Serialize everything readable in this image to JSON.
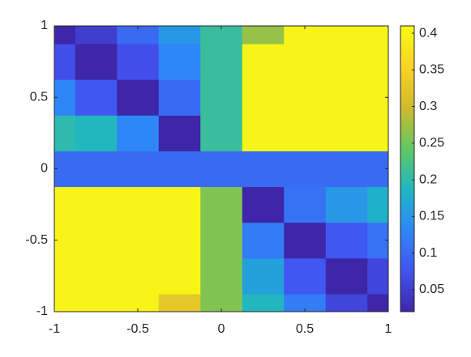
{
  "chart_data": {
    "type": "heatmap",
    "x": [
      -1,
      -0.75,
      -0.5,
      -0.25,
      0,
      0.25,
      0.5,
      0.75,
      1
    ],
    "y": [
      -1,
      -0.75,
      -0.5,
      -0.25,
      0,
      0.25,
      0.5,
      0.75,
      1
    ],
    "z": [
      [
        0.4,
        0.4,
        0.4,
        0.33,
        0.26,
        0.19,
        0.12,
        0.06,
        0.02
      ],
      [
        0.4,
        0.4,
        0.4,
        0.4,
        0.26,
        0.16,
        0.08,
        0.02,
        0.06
      ],
      [
        0.4,
        0.4,
        0.4,
        0.4,
        0.26,
        0.12,
        0.02,
        0.08,
        0.11
      ],
      [
        0.4,
        0.4,
        0.4,
        0.4,
        0.26,
        0.02,
        0.11,
        0.15,
        0.18
      ],
      [
        0.1,
        0.1,
        0.1,
        0.1,
        0.1,
        0.1,
        0.1,
        0.1,
        0.1
      ],
      [
        0.2,
        0.19,
        0.13,
        0.02,
        0.21,
        0.4,
        0.4,
        0.4,
        0.4
      ],
      [
        0.13,
        0.08,
        0.02,
        0.1,
        0.21,
        0.4,
        0.4,
        0.4,
        0.4
      ],
      [
        0.07,
        0.02,
        0.07,
        0.13,
        0.21,
        0.4,
        0.4,
        0.4,
        0.4
      ],
      [
        0.02,
        0.05,
        0.1,
        0.15,
        0.21,
        0.27,
        0.4,
        0.4,
        0.4
      ]
    ],
    "xlim": [
      -1,
      1
    ],
    "ylim": [
      -1,
      1
    ],
    "xticks": [
      -1,
      -0.5,
      0,
      0.5,
      1
    ],
    "yticks": [
      -1,
      -0.5,
      0,
      0.5,
      1
    ],
    "clim": [
      0.02,
      0.41
    ],
    "cticks": [
      0.05,
      0.1,
      0.15,
      0.2,
      0.25,
      0.3,
      0.35,
      0.4
    ],
    "colormap": [
      "#3e26a8",
      "#4253f0",
      "#2e87f7",
      "#1fb6c4",
      "#60c863",
      "#d0ba2d",
      "#f9d326",
      "#f9fb15"
    ]
  }
}
